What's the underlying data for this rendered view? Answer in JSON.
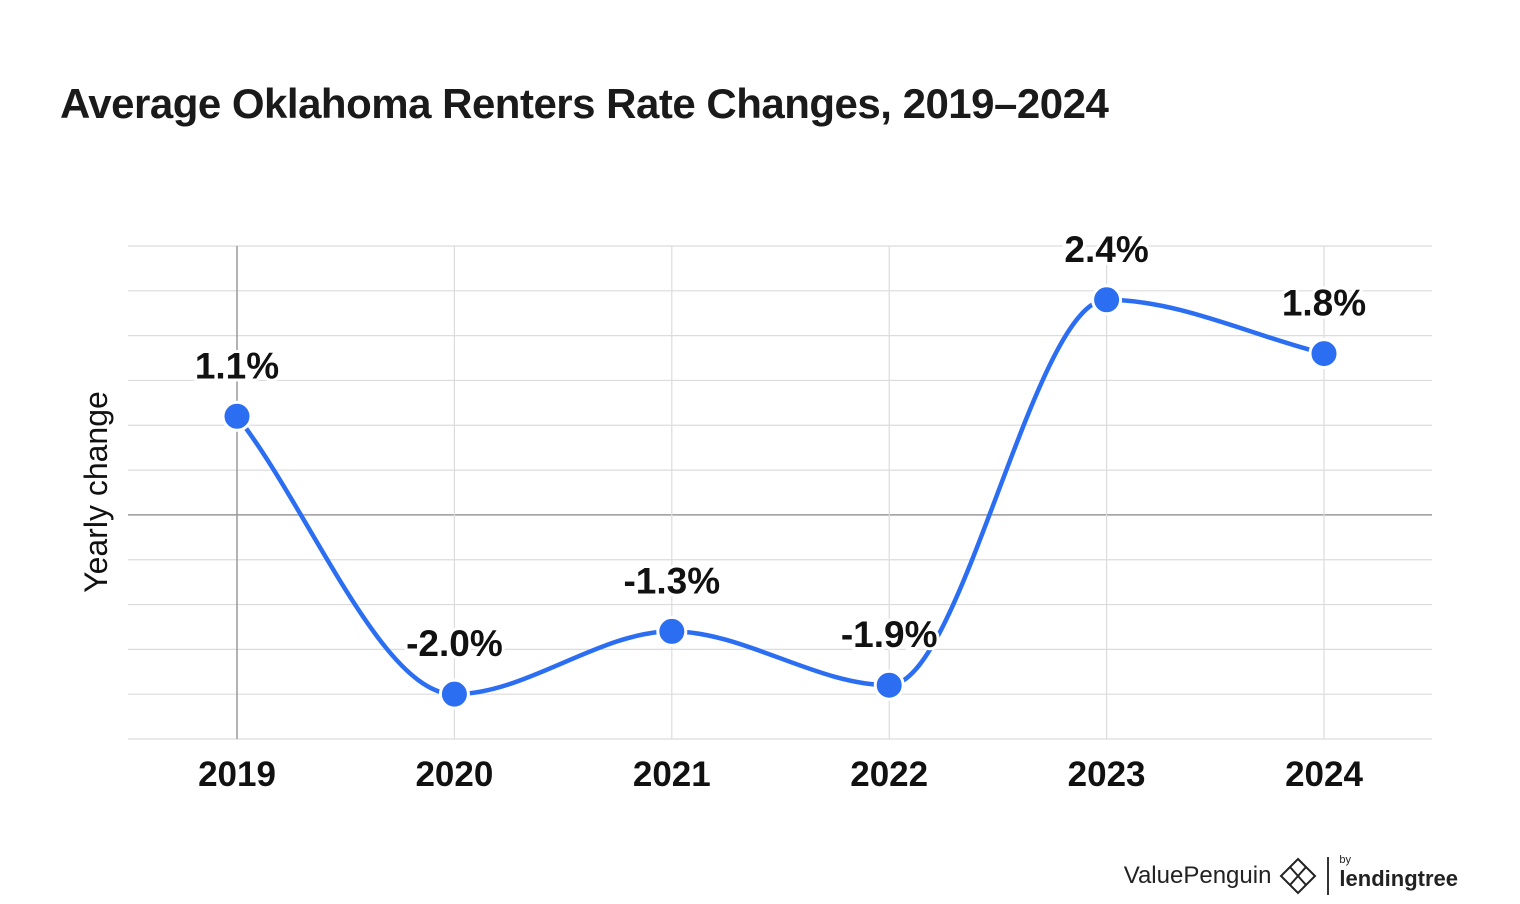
{
  "title": "Average Oklahoma Renters Rate Changes, 2019–2024",
  "chart_data": {
    "type": "line",
    "title": "Average Oklahoma Renters Rate Changes, 2019–2024",
    "xlabel": "",
    "ylabel": "Yearly change",
    "categories": [
      "2019",
      "2020",
      "2021",
      "2022",
      "2023",
      "2024"
    ],
    "series": [
      {
        "values": [
          1.1,
          -2.0,
          -1.3,
          -1.9,
          2.4,
          1.8
        ],
        "labels": [
          "1.1%",
          "-2.0%",
          "-1.3%",
          "-1.9%",
          "2.4%",
          "1.8%"
        ]
      }
    ],
    "ylim": [
      -2.5,
      3.0
    ],
    "grid": true,
    "legend": "none",
    "colors": {
      "line": "#2b6ef2",
      "grid": "#dcdcdc",
      "axis": "#9a9a9a",
      "text": "#111111"
    }
  },
  "brand": {
    "name": "ValuePenguin",
    "by": "by",
    "partner": "lendingtree",
    "icon": "valuepenguin-logo-icon"
  }
}
